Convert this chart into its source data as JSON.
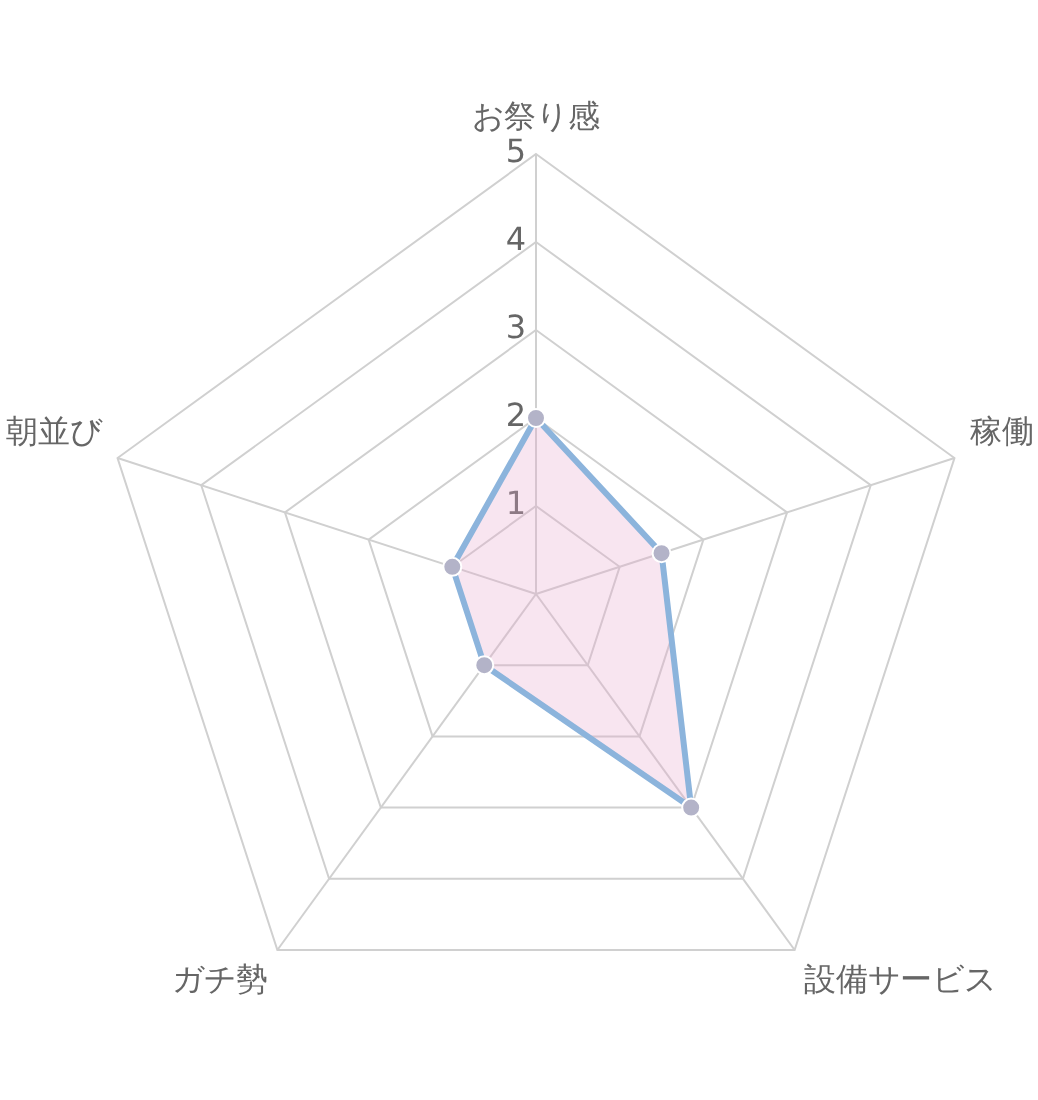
{
  "chart_data": {
    "type": "radar",
    "categories": [
      "お祭り感",
      "稼働",
      "設備サービス",
      "ガチ勢",
      "朝並び"
    ],
    "series": [
      {
        "color": "#8cb4dc",
        "values": [
          2,
          1.5,
          3,
          1,
          1
        ]
      }
    ],
    "ylim": [
      0,
      5
    ],
    "yticks": [
      1,
      2,
      3,
      4,
      5
    ],
    "grid": true,
    "marker": "circle"
  }
}
